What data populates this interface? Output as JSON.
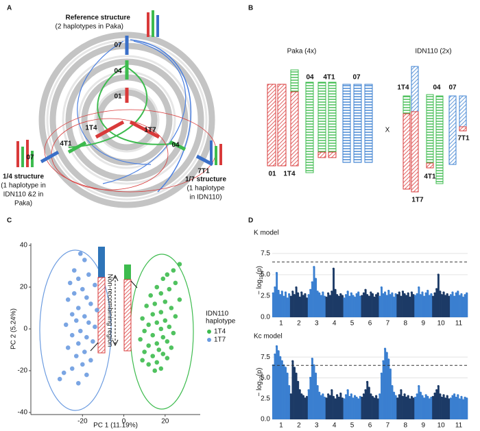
{
  "panel_labels": [
    "A",
    "B",
    "C",
    "D"
  ],
  "panel_a": {
    "reference": [
      "Reference structure",
      "(2 haplotypes in Paka)"
    ],
    "structure_14": [
      "1/4 structure",
      "(1 haplotype in",
      "IDN110 &2 in",
      "Paka)"
    ],
    "structure_17": [
      "1/7 structure",
      "(1 haplotype",
      "in IDN110)"
    ],
    "segment_labels": [
      "07",
      "04",
      "01",
      "1T4",
      "1T7",
      "4T1",
      "04",
      "07",
      "7T1"
    ]
  },
  "panel_b": {
    "titles": [
      "Paka (4x)",
      "IDN110 (2x)"
    ],
    "cross": "X",
    "labels": [
      "01",
      "1T4",
      "04",
      "4T1",
      "07",
      "1T4",
      "04",
      "07",
      "7T1",
      "4T1",
      "1T7"
    ]
  },
  "chart_data": [
    {
      "type": "scatter",
      "xlabel": "PC 1 (11.19%)",
      "ylabel": "PC 2 (5.24%)",
      "annotation": "Non-recombining region",
      "legend_title": [
        "IDN110",
        "haplotype"
      ],
      "legend": "right",
      "xlim": [
        -45,
        37
      ],
      "xticks": [
        -20,
        0,
        20
      ],
      "ylim": [
        -41,
        41
      ],
      "yticks": [
        -40,
        -20,
        0,
        20,
        40
      ],
      "series": [
        {
          "name": "1T4",
          "color": "#3dbb4e",
          "x": [
            27,
            24,
            21,
            19,
            25,
            16,
            22,
            18,
            13,
            27,
            20,
            15,
            11,
            23,
            18,
            14,
            25,
            9,
            20,
            16,
            12,
            22,
            18,
            10,
            24,
            14,
            19,
            8,
            21,
            16,
            12,
            23,
            17,
            10,
            19,
            14,
            21,
            9,
            16,
            12,
            18,
            15
          ],
          "values": [
            31,
            28,
            26,
            24,
            22,
            20,
            19,
            17,
            16,
            14,
            13,
            12,
            11,
            10,
            8,
            7,
            6,
            5,
            4,
            3,
            2,
            1,
            0,
            -1,
            -2,
            -3,
            -4,
            -5,
            -6,
            -7,
            -8,
            -9,
            -10,
            -11,
            -12,
            -13,
            -14,
            -15,
            -16,
            -17,
            -19,
            -20
          ]
        },
        {
          "name": "1T7",
          "color": "#6b9be0",
          "x": [
            -21,
            -19,
            -24,
            -17,
            -22,
            -26,
            -14,
            -20,
            -24,
            -18,
            -27,
            -16,
            -22,
            -13,
            -25,
            -19,
            -23,
            -17,
            -28,
            -14,
            -21,
            -25,
            -18,
            -15,
            -22,
            -27,
            -19,
            -23,
            -16,
            -20,
            -25,
            -29,
            -31,
            -18,
            -22
          ],
          "values": [
            36,
            33,
            28,
            26,
            24,
            22,
            21,
            19,
            17,
            15,
            14,
            12,
            10,
            9,
            7,
            6,
            4,
            3,
            2,
            1,
            -1,
            -3,
            -4,
            -6,
            -7,
            -9,
            -11,
            -13,
            -15,
            -17,
            -19,
            -21,
            -24,
            -22,
            -26
          ]
        }
      ]
    },
    {
      "type": "manhattan",
      "title": "K model",
      "ylabel": [
        "− log",
        "10",
        "(p)"
      ],
      "categories": [
        "1",
        "2",
        "3",
        "4",
        "5",
        "6",
        "7",
        "8",
        "9",
        "10",
        "11"
      ],
      "colors": [
        "#3a7fd0",
        "#1c3a66"
      ],
      "ylim": [
        0,
        8.7
      ],
      "yticks": [
        {
          "value": 0,
          "label": "0.0"
        },
        2.5,
        {
          "value": 5,
          "label": "5.0"
        },
        7.5
      ],
      "threshold": 6.5,
      "grid": true,
      "values": [
        [
          2.8,
          3.5,
          5.2,
          3.1,
          2.6,
          3.0,
          2.4,
          2.9,
          2.2,
          2.7
        ],
        [
          2.4,
          3.0,
          2.6,
          3.5,
          2.8,
          2.3,
          2.9,
          2.5,
          2.7,
          2.2
        ],
        [
          2.6,
          3.2,
          4.1,
          5.9,
          4.5,
          3.0,
          2.8,
          2.5,
          2.9,
          2.4
        ],
        [
          2.3,
          2.8,
          2.5,
          3.0,
          5.7,
          3.2,
          2.6,
          2.4,
          2.7,
          2.5
        ],
        [
          2.2,
          2.6,
          3.0,
          2.4,
          2.8,
          2.5,
          2.3,
          2.7,
          2.9,
          2.4
        ],
        [
          2.5,
          2.8,
          3.2,
          2.6,
          2.4,
          2.9,
          2.7,
          2.3,
          2.6,
          2.8
        ],
        [
          2.4,
          3.5,
          2.7,
          2.9,
          2.5,
          3.1,
          2.6,
          2.8,
          2.3,
          2.7
        ],
        [
          2.6,
          2.9,
          2.4,
          3.0,
          2.7,
          2.5,
          2.8,
          2.3,
          2.9,
          2.6
        ],
        [
          2.5,
          2.7,
          3.5,
          2.6,
          2.9,
          2.4,
          2.8,
          3.1,
          2.5,
          2.7
        ],
        [
          2.4,
          2.8,
          3.3,
          5.0,
          3.0,
          2.6,
          2.9,
          2.5,
          2.7,
          2.4
        ],
        [
          2.6,
          2.9,
          2.4,
          2.8,
          3.0,
          2.5,
          2.7,
          2.3,
          2.6,
          2.8
        ]
      ]
    },
    {
      "type": "manhattan",
      "title": "Kc model",
      "ylabel": [
        "− log",
        "10",
        "(p)"
      ],
      "categories": [
        "1",
        "2",
        "3",
        "4",
        "5",
        "6",
        "7",
        "8",
        "9",
        "10",
        "11"
      ],
      "colors": [
        "#3a7fd0",
        "#1c3a66"
      ],
      "ylim": [
        0,
        9
      ],
      "yticks": [
        {
          "value": 0,
          "label": "0.0"
        },
        2.5,
        {
          "value": 5,
          "label": "5.0"
        },
        7.5
      ],
      "threshold": 6.5,
      "grid": true,
      "values": [
        [
          6.5,
          7.8,
          8.8,
          8.2,
          7.5,
          7.0,
          6.5,
          6.2,
          5.5,
          4.0
        ],
        [
          3.0,
          7.0,
          6.2,
          5.5,
          4.5,
          3.5,
          3.0,
          2.8,
          2.5,
          2.7
        ],
        [
          3.5,
          5.0,
          7.3,
          6.5,
          5.5,
          4.0,
          3.2,
          2.8,
          3.0,
          2.6
        ],
        [
          2.5,
          3.0,
          2.8,
          3.5,
          2.7,
          2.4,
          2.9,
          2.6,
          3.1,
          2.5
        ],
        [
          2.4,
          2.9,
          3.5,
          2.7,
          3.0,
          2.5,
          2.8,
          2.6,
          2.4,
          2.7
        ],
        [
          2.6,
          3.0,
          3.5,
          4.5,
          3.8,
          3.0,
          2.7,
          2.5,
          2.8,
          2.4
        ],
        [
          3.0,
          5.5,
          7.0,
          8.5,
          8.0,
          7.2,
          6.0,
          4.0,
          3.2,
          2.8
        ],
        [
          2.5,
          2.9,
          3.5,
          2.7,
          3.0,
          2.6,
          2.8,
          2.4,
          2.7,
          2.5
        ],
        [
          2.6,
          3.0,
          4.0,
          3.2,
          2.8,
          2.5,
          2.9,
          2.7,
          2.4,
          2.6
        ],
        [
          2.7,
          3.1,
          3.5,
          4.0,
          3.0,
          2.6,
          2.9,
          2.5,
          2.8,
          2.4
        ],
        [
          2.5,
          2.8,
          3.0,
          2.6,
          2.9,
          2.4,
          2.7,
          2.3,
          2.6,
          2.5
        ]
      ]
    }
  ]
}
